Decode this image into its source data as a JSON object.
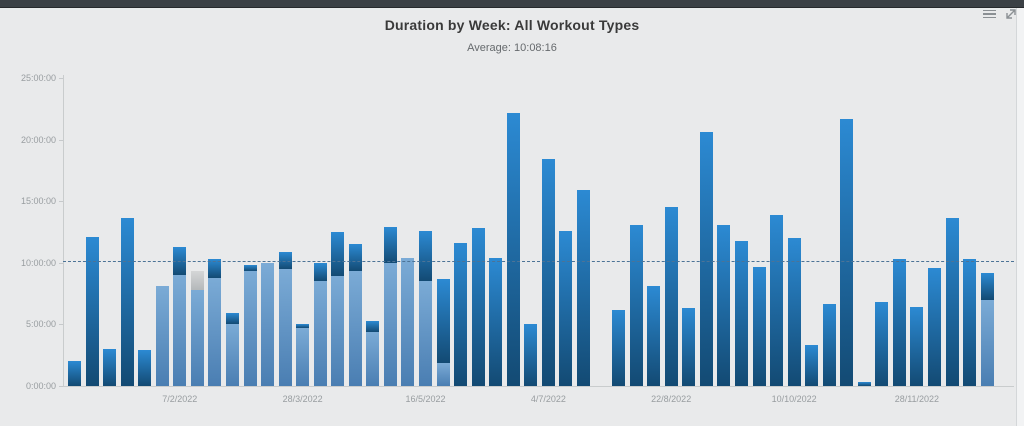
{
  "header": {
    "title": "Duration by Week: All Workout Types",
    "subtitle": "Average: 10:08:16"
  },
  "colors": {
    "dark_blue_top": "#2c8ad3",
    "dark_blue_bottom": "#134a73",
    "light_blue_top": "#7babd6",
    "light_blue_bottom": "#4a7eb2",
    "gray_top": "#d5d6d7",
    "gray_bottom": "#b4b8ba",
    "average_line": "#4c7396",
    "background": "#e9eaeb",
    "topbar": "#3b4045"
  },
  "chart_data": {
    "type": "bar",
    "stacked": true,
    "title": "Duration by Week: All Workout Types",
    "subtitle": "Average: 10:08:16",
    "ylabel": "",
    "xlabel": "",
    "y_axis": {
      "min_hours": 0,
      "max_hours": 25,
      "tick_step_hours": 5,
      "tick_labels": [
        "0:00:00",
        "5:00:00",
        "10:00:00",
        "15:00:00",
        "20:00:00",
        "25:00:00"
      ]
    },
    "x_axis": {
      "tick_labels": [
        {
          "label": "7/2/2022",
          "bar_index": 7
        },
        {
          "label": "28/3/2022",
          "bar_index": 14
        },
        {
          "label": "16/5/2022",
          "bar_index": 21
        },
        {
          "label": "4/7/2022",
          "bar_index": 28
        },
        {
          "label": "22/8/2022",
          "bar_index": 35
        },
        {
          "label": "10/10/2022",
          "bar_index": 42
        },
        {
          "label": "28/11/2022",
          "bar_index": 49
        }
      ]
    },
    "average_line": {
      "value_label": "10:08:16",
      "hours": 10.1378
    },
    "legend": null,
    "grid": false,
    "bars_note": "53 weekly bars; segment hours stack bottom-to-top as light, gray, dark",
    "bars": [
      {
        "light": 0,
        "gray": 0,
        "dark": 2.0
      },
      {
        "light": 0,
        "gray": 0,
        "dark": 12.1
      },
      {
        "light": 0,
        "gray": 0,
        "dark": 3.0
      },
      {
        "light": 0,
        "gray": 0,
        "dark": 13.6
      },
      {
        "light": 0,
        "gray": 0,
        "dark": 2.9
      },
      {
        "light": 8.1,
        "gray": 0,
        "dark": 0
      },
      {
        "light": 9.0,
        "gray": 0,
        "dark": 2.3
      },
      {
        "light": 7.8,
        "gray": 1.5,
        "dark": 0
      },
      {
        "light": 8.8,
        "gray": 0,
        "dark": 1.5
      },
      {
        "light": 5.05,
        "gray": 0,
        "dark": 0.9
      },
      {
        "light": 9.3,
        "gray": 0,
        "dark": 0.5
      },
      {
        "light": 10.0,
        "gray": 0,
        "dark": 0
      },
      {
        "light": 9.5,
        "gray": 0,
        "dark": 1.4
      },
      {
        "light": 4.7,
        "gray": 0,
        "dark": 0.35
      },
      {
        "light": 8.55,
        "gray": 0,
        "dark": 1.45
      },
      {
        "light": 8.95,
        "gray": 0,
        "dark": 3.55
      },
      {
        "light": 9.3,
        "gray": 0,
        "dark": 2.2
      },
      {
        "light": 4.35,
        "gray": 0,
        "dark": 0.95
      },
      {
        "light": 10.0,
        "gray": 0,
        "dark": 2.95
      },
      {
        "light": 10.4,
        "gray": 0,
        "dark": 0
      },
      {
        "light": 8.5,
        "gray": 0,
        "dark": 4.1
      },
      {
        "light": 1.85,
        "gray": 0,
        "dark": 6.85
      },
      {
        "light": 0,
        "gray": 0,
        "dark": 11.65
      },
      {
        "light": 0,
        "gray": 0,
        "dark": 12.85
      },
      {
        "light": 0,
        "gray": 0,
        "dark": 10.4
      },
      {
        "light": 0,
        "gray": 0,
        "dark": 22.2
      },
      {
        "light": 0,
        "gray": 0,
        "dark": 5.0
      },
      {
        "light": 0,
        "gray": 0,
        "dark": 18.4
      },
      {
        "light": 0,
        "gray": 0,
        "dark": 12.6
      },
      {
        "light": 0,
        "gray": 0,
        "dark": 15.95
      },
      {
        "light": 0,
        "gray": 0,
        "dark": 0
      },
      {
        "light": 0,
        "gray": 0,
        "dark": 6.2
      },
      {
        "light": 0,
        "gray": 0,
        "dark": 13.1
      },
      {
        "light": 0,
        "gray": 0,
        "dark": 8.1
      },
      {
        "light": 0,
        "gray": 0,
        "dark": 14.5
      },
      {
        "light": 0,
        "gray": 0,
        "dark": 6.3
      },
      {
        "light": 0,
        "gray": 0,
        "dark": 20.6
      },
      {
        "light": 0,
        "gray": 0,
        "dark": 13.05
      },
      {
        "light": 0,
        "gray": 0,
        "dark": 11.75
      },
      {
        "light": 0,
        "gray": 0,
        "dark": 9.65
      },
      {
        "light": 0,
        "gray": 0,
        "dark": 13.9
      },
      {
        "light": 0,
        "gray": 0,
        "dark": 12.0
      },
      {
        "light": 0,
        "gray": 0,
        "dark": 3.35
      },
      {
        "light": 0,
        "gray": 0,
        "dark": 6.7
      },
      {
        "light": 0,
        "gray": 0,
        "dark": 21.65
      },
      {
        "light": 0,
        "gray": 0,
        "dark": 0.35
      },
      {
        "light": 0,
        "gray": 0,
        "dark": 6.8
      },
      {
        "light": 0,
        "gray": 0,
        "dark": 10.35
      },
      {
        "light": 0,
        "gray": 0,
        "dark": 6.45
      },
      {
        "light": 0,
        "gray": 0,
        "dark": 9.55
      },
      {
        "light": 0,
        "gray": 0,
        "dark": 13.65
      },
      {
        "light": 0,
        "gray": 0,
        "dark": 10.35
      },
      {
        "light": 7.0,
        "gray": 0,
        "dark": 2.15
      }
    ]
  }
}
